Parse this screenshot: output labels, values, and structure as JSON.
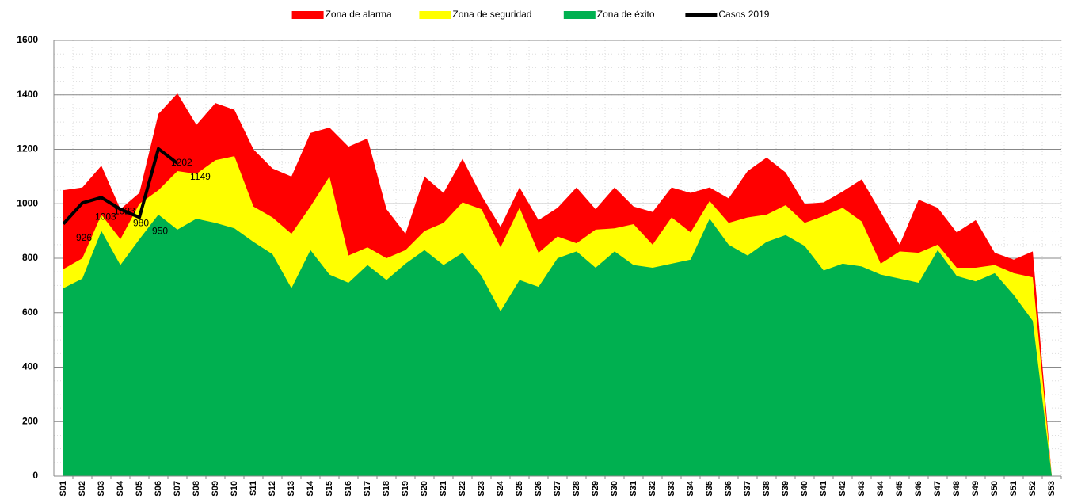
{
  "chart_data": {
    "type": "area",
    "categories": [
      "S01",
      "S02",
      "S03",
      "S04",
      "S05",
      "S06",
      "S07",
      "S08",
      "S09",
      "S10",
      "S11",
      "S12",
      "S13",
      "S14",
      "S15",
      "S16",
      "S17",
      "S18",
      "S19",
      "S20",
      "S21",
      "S22",
      "S23",
      "S24",
      "S25",
      "S26",
      "S27",
      "S28",
      "S29",
      "S30",
      "S31",
      "S32",
      "S33",
      "S34",
      "S35",
      "S36",
      "S37",
      "S38",
      "S39",
      "S40",
      "S41",
      "S42",
      "S43",
      "S44",
      "S45",
      "S46",
      "S47",
      "S48",
      "S49",
      "S50",
      "S51",
      "S52",
      "S53"
    ],
    "series": [
      {
        "name": "Zona de alarma",
        "color": "#ff0000",
        "type": "area",
        "values": [
          1050,
          1060,
          1140,
          980,
          1040,
          1330,
          1405,
          1290,
          1370,
          1345,
          1200,
          1130,
          1100,
          1260,
          1280,
          1210,
          1240,
          980,
          890,
          1100,
          1040,
          1165,
          1030,
          915,
          1060,
          940,
          985,
          1060,
          980,
          1060,
          990,
          970,
          1060,
          1040,
          1060,
          1020,
          1120,
          1170,
          1115,
          1000,
          1005,
          1045,
          1090,
          970,
          850,
          1015,
          985,
          895,
          940,
          820,
          795,
          825,
          0
        ]
      },
      {
        "name": "Zona de seguridad",
        "color": "#ffff00",
        "type": "area",
        "values": [
          760,
          800,
          960,
          870,
          1000,
          1050,
          1120,
          1110,
          1160,
          1175,
          990,
          950,
          890,
          990,
          1100,
          810,
          840,
          800,
          830,
          900,
          930,
          1005,
          980,
          840,
          985,
          820,
          880,
          855,
          905,
          910,
          925,
          850,
          950,
          895,
          1010,
          930,
          950,
          960,
          995,
          930,
          955,
          985,
          935,
          780,
          825,
          820,
          850,
          765,
          765,
          775,
          745,
          730,
          0
        ]
      },
      {
        "name": "Zona de éxito",
        "color": "#00b050",
        "type": "area",
        "values": [
          690,
          725,
          900,
          775,
          870,
          960,
          905,
          945,
          930,
          910,
          860,
          815,
          690,
          830,
          740,
          710,
          775,
          720,
          780,
          830,
          775,
          820,
          735,
          605,
          720,
          695,
          800,
          825,
          765,
          825,
          775,
          765,
          780,
          795,
          945,
          850,
          810,
          860,
          885,
          845,
          755,
          780,
          770,
          740,
          725,
          710,
          830,
          735,
          715,
          745,
          665,
          570,
          0
        ]
      },
      {
        "name": "Casos 2019",
        "color": "#000000",
        "type": "line",
        "values": [
          926,
          1003,
          1023,
          980,
          950,
          1202,
          1149,
          null,
          null,
          null,
          null,
          null,
          null,
          null,
          null,
          null,
          null,
          null,
          null,
          null,
          null,
          null,
          null,
          null,
          null,
          null,
          null,
          null,
          null,
          null,
          null,
          null,
          null,
          null,
          null,
          null,
          null,
          null,
          null,
          null,
          null,
          null,
          null,
          null,
          null,
          null,
          null,
          null,
          null,
          null,
          null,
          null,
          null
        ]
      }
    ],
    "ylim": [
      0,
      1600
    ],
    "yticks": [
      0,
      200,
      400,
      600,
      800,
      1000,
      1200,
      1400,
      1600
    ],
    "grid": true,
    "legend": "top"
  }
}
